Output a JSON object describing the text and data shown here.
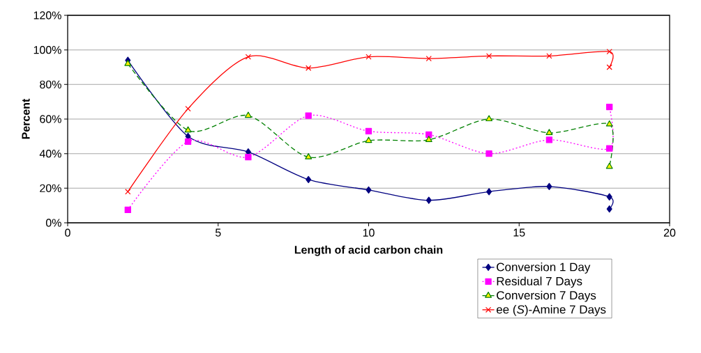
{
  "chart_data": {
    "type": "line",
    "xlabel": "Length of acid carbon chain",
    "ylabel": "Percent",
    "x": [
      2,
      4,
      6,
      8,
      10,
      12,
      14,
      16,
      18,
      18
    ],
    "series": [
      {
        "name": "Conversion 1 Day",
        "color": "#000080",
        "marker": "diamond",
        "line_style": "solid",
        "values": [
          94,
          50,
          41,
          25,
          19,
          13,
          18,
          21,
          15,
          8
        ]
      },
      {
        "name": "Residual 7 Days",
        "color": "#ff00ff",
        "marker": "square",
        "line_style": "dotted",
        "values": [
          7.5,
          47,
          38,
          62,
          53,
          51,
          40,
          48,
          43,
          67
        ]
      },
      {
        "name": "Conversion 7 Days",
        "color": "#008000",
        "marker": "triangle",
        "line_style": "dashed",
        "values": [
          92,
          53.5,
          62,
          38,
          47.5,
          48,
          60,
          52,
          57,
          32.5
        ]
      },
      {
        "name": "ee (*S*)-Amine 7 Days",
        "color": "#ff0000",
        "marker": "cross",
        "line_style": "solid",
        "values": [
          18,
          66,
          96,
          89.5,
          96,
          95,
          96.5,
          96.5,
          99,
          90
        ]
      }
    ],
    "xlim": [
      0,
      20
    ],
    "xticks": [
      0,
      5,
      10,
      15,
      20
    ],
    "ylim": [
      0,
      120
    ],
    "yticks": [
      {
        "value": 0,
        "label": "0%"
      },
      {
        "value": 20,
        "label": "20%"
      },
      {
        "value": 40,
        "label": "40%"
      },
      {
        "value": 60,
        "label": "60%"
      },
      {
        "value": 80,
        "label": "80%"
      },
      {
        "value": 100,
        "label": "100%"
      },
      {
        "value": 120,
        "label": "120%"
      }
    ],
    "grid": "y",
    "legend": "bottom right"
  }
}
